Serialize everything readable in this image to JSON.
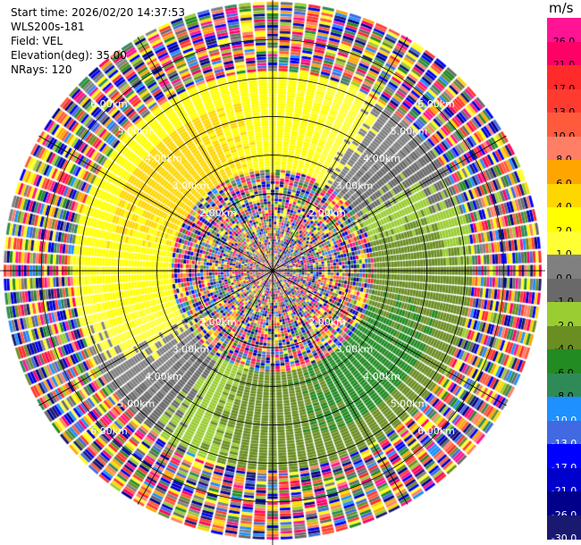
{
  "header": {
    "start_time": "Start time: 2026/02/20 14:37:53",
    "instrument": "WLS200s-181",
    "field": "Field: VEL",
    "elevation": "Elevation(deg): 35.00",
    "nrays": "NRays: 120"
  },
  "colorbar": {
    "unit": "m/s",
    "entries": [
      {
        "label": "26.0",
        "color": "#ff1493"
      },
      {
        "label": "21.0",
        "color": "#ff0066"
      },
      {
        "label": "17.0",
        "color": "#ff2a2a"
      },
      {
        "label": "13.0",
        "color": "#ff3b30"
      },
      {
        "label": "10.0",
        "color": "#ff5a3c"
      },
      {
        "label": "8.0",
        "color": "#ff7f66"
      },
      {
        "label": "6.0",
        "color": "#ffa500"
      },
      {
        "label": "4.0",
        "color": "#ffd700"
      },
      {
        "label": "2.0",
        "color": "#ffff00"
      },
      {
        "label": "1.0",
        "color": "#ffff33"
      },
      {
        "label": "0.0",
        "color": "#808080"
      },
      {
        "label": "-1.0",
        "color": "#696969"
      },
      {
        "label": "-2.0",
        "color": "#9acd32"
      },
      {
        "label": "-4.0",
        "color": "#6b8e23"
      },
      {
        "label": "-6.0",
        "color": "#228b22"
      },
      {
        "label": "-8.0",
        "color": "#2e8b57"
      },
      {
        "label": "-10.0",
        "color": "#1e90ff"
      },
      {
        "label": "-13.0",
        "color": "#4169e1"
      },
      {
        "label": "-17.0",
        "color": "#0000ff"
      },
      {
        "label": "-21.0",
        "color": "#0000cd"
      },
      {
        "label": "-26.0",
        "color": "#00008b"
      },
      {
        "label": "-30.0",
        "color": "#191970"
      }
    ]
  },
  "chart_data": {
    "type": "heatmap",
    "projection": "polar-ppi",
    "field": "VEL",
    "unit": "m/s",
    "nrays": 120,
    "max_range_km": 7.0,
    "ring_labels_km": [
      "2.00km",
      "3.00km",
      "4.00km",
      "5.00km",
      "6.00km"
    ],
    "ring_radii_km": [
      2,
      3,
      4,
      5,
      6
    ],
    "vmin": -30,
    "vmax": 30,
    "regions": [
      {
        "r_km": [
          0.0,
          2.6
        ],
        "pattern": "noise"
      },
      {
        "r_km": [
          2.6,
          4.4
        ],
        "pattern": "coherent",
        "positive_azimuth_deg": 315,
        "amplitude_ms": 4.5
      },
      {
        "r_km": [
          4.4,
          5.2
        ],
        "pattern": "coherent",
        "positive_azimuth_deg": 320,
        "amplitude_ms": 3.5
      },
      {
        "r_km": [
          5.2,
          7.0
        ],
        "pattern": "noise"
      }
    ],
    "grid": true
  }
}
